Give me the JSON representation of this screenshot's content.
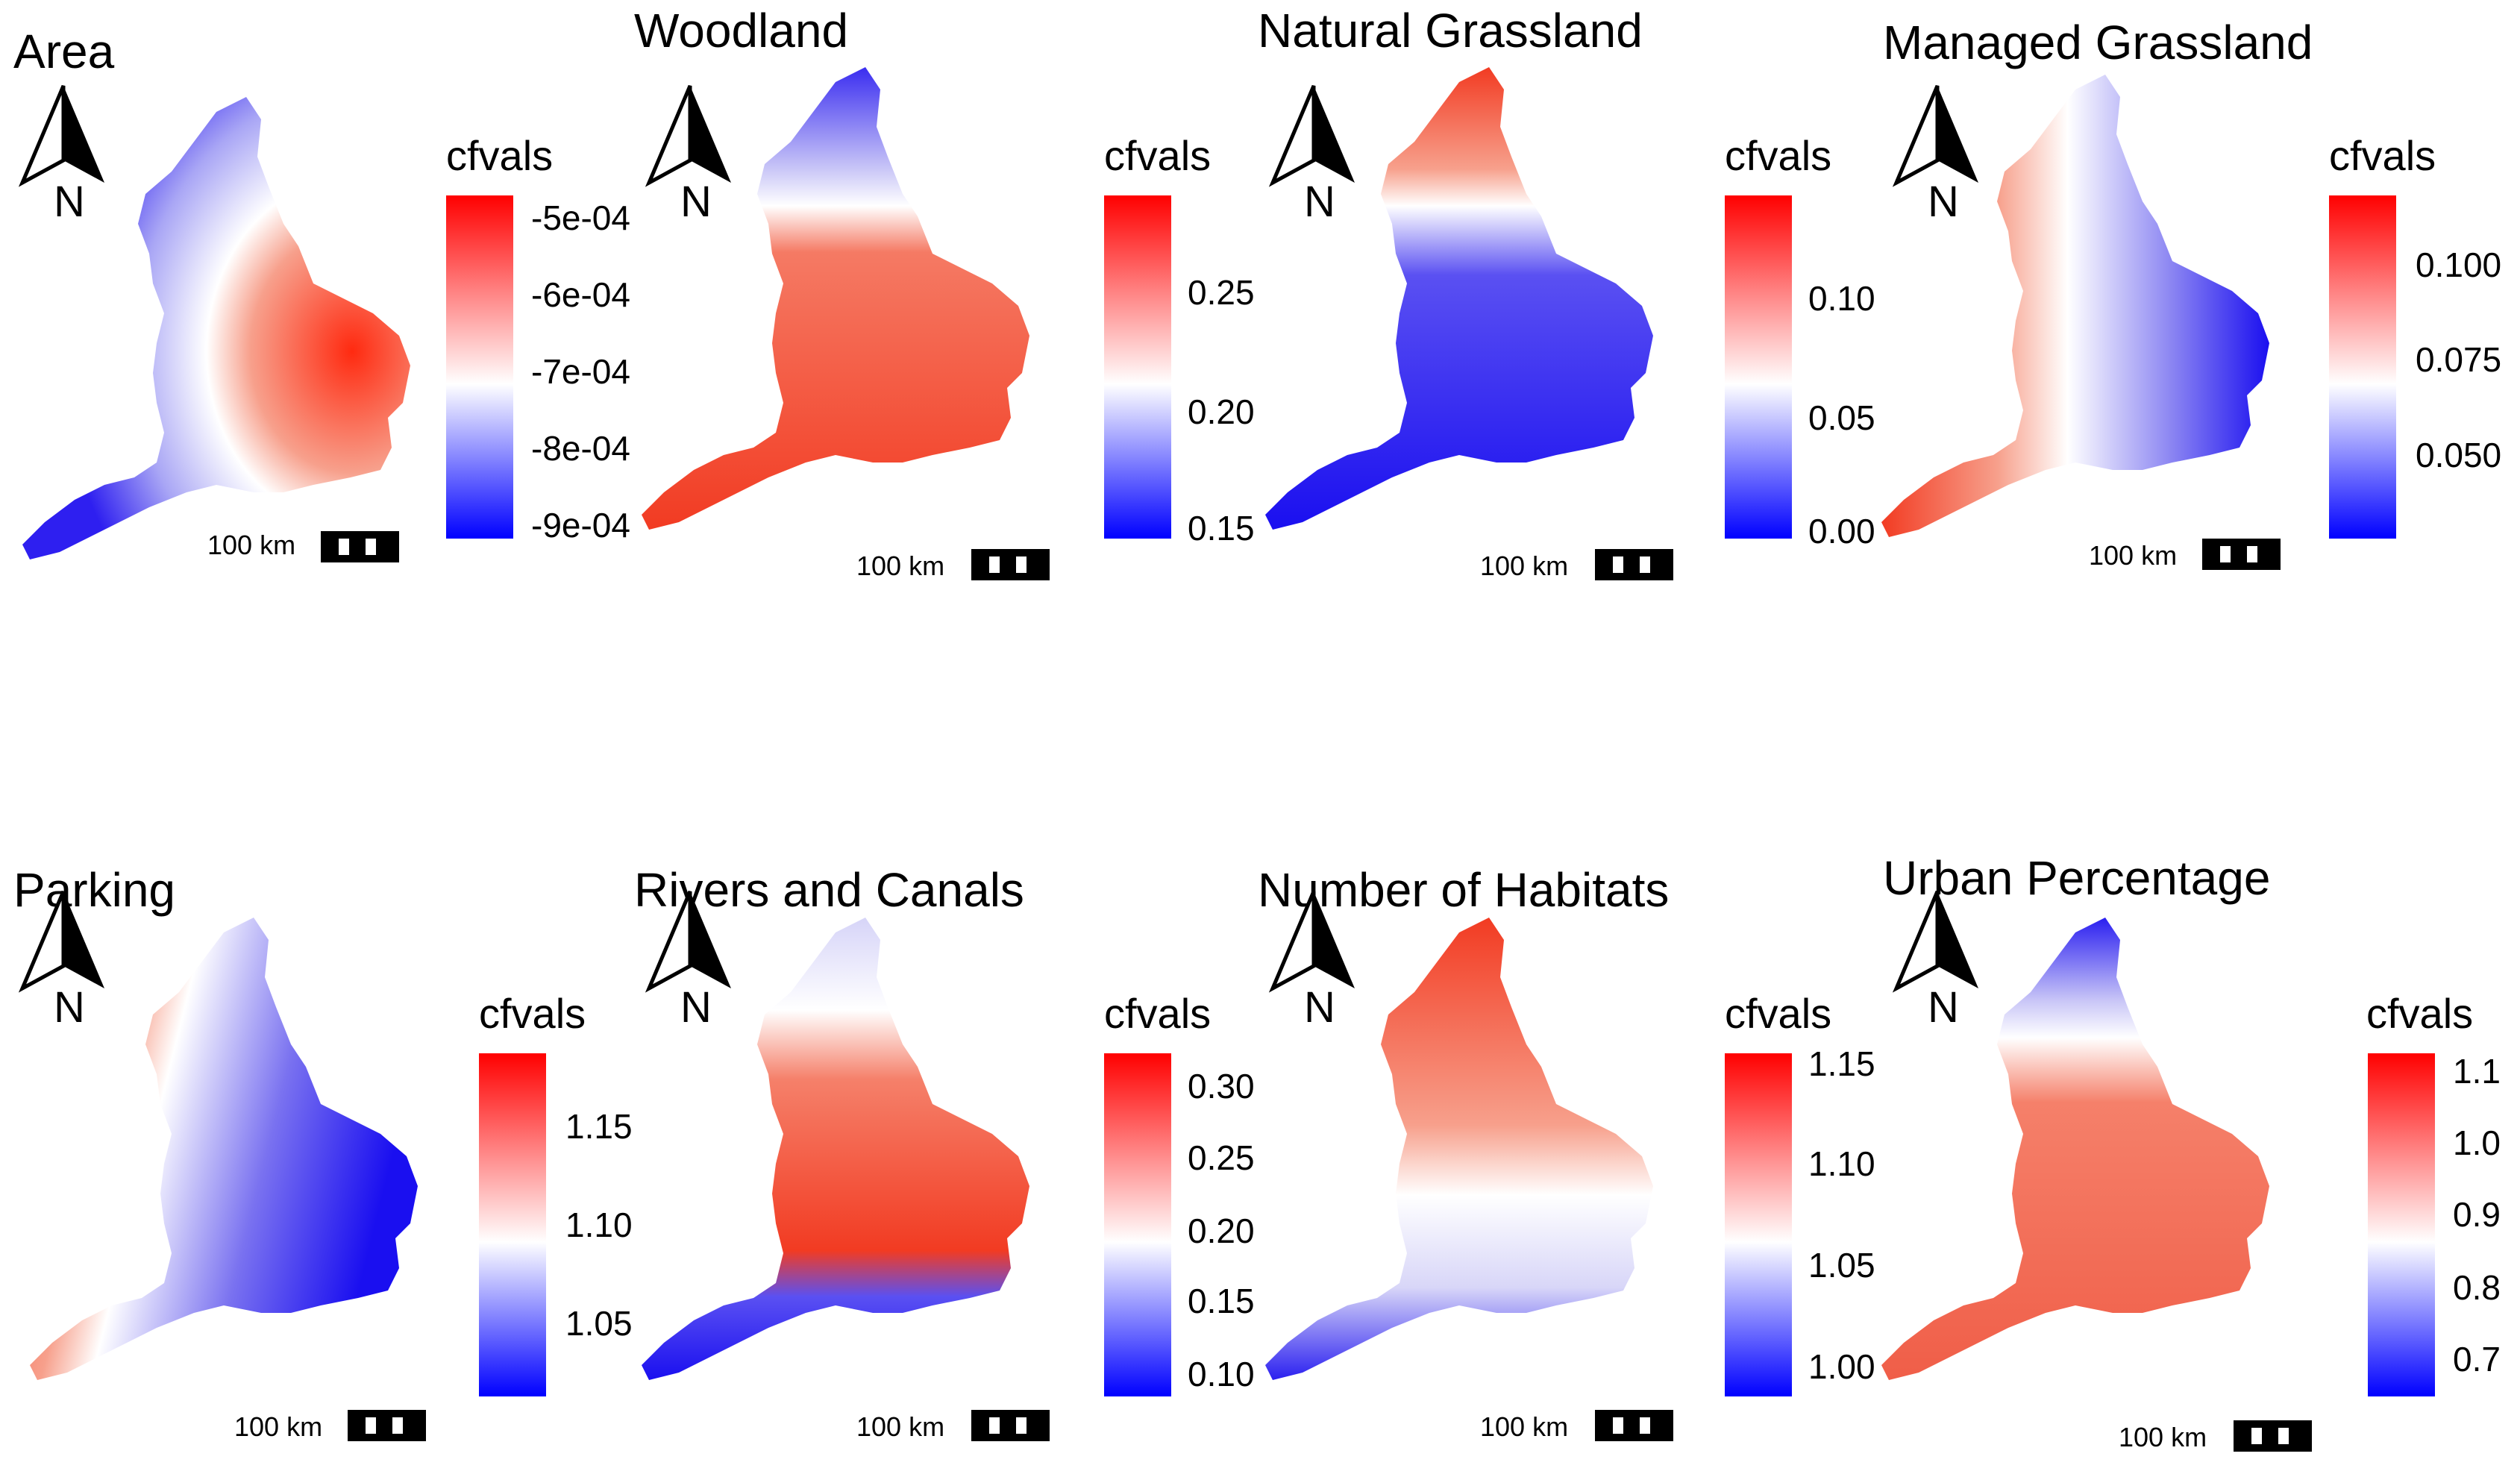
{
  "figure": {
    "legend_title": "cfvals",
    "scale_label": "100 km",
    "north_label": "N",
    "colors": {
      "high": "#ff0000",
      "mid": "#ffffff",
      "low": "#0000ff"
    }
  },
  "panels": [
    {
      "title": "Area",
      "ticks": [
        "-5e-04",
        "-6e-04",
        "-7e-04",
        "-8e-04",
        "-9e-04"
      ]
    },
    {
      "title": "Woodland",
      "ticks": [
        "0.25",
        "0.20",
        "0.15"
      ]
    },
    {
      "title": "Natural Grassland",
      "ticks": [
        "0.10",
        "0.05",
        "0.00"
      ]
    },
    {
      "title": "Managed Grassland",
      "ticks": [
        "0.100",
        "0.075",
        "0.050"
      ]
    },
    {
      "title": "Parking",
      "ticks": [
        "1.15",
        "1.10",
        "1.05"
      ]
    },
    {
      "title": "Rivers and Canals",
      "ticks": [
        "0.30",
        "0.25",
        "0.20",
        "0.15",
        "0.10"
      ]
    },
    {
      "title": "Number of Habitats",
      "ticks": [
        "1.15",
        "1.10",
        "1.05",
        "1.00"
      ]
    },
    {
      "title": "Urban Percentage",
      "ticks": [
        "1.1",
        "1.0",
        "0.9",
        "0.8",
        "0.7"
      ]
    }
  ]
}
